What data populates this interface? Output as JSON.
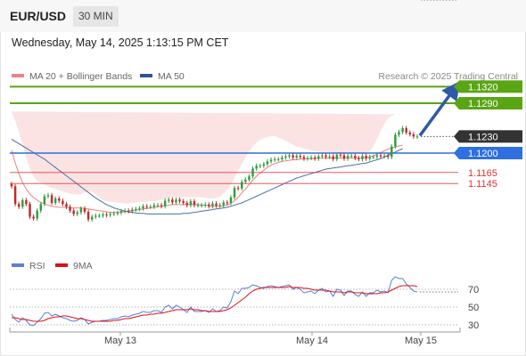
{
  "header": {
    "pair": "EUR/USD",
    "timeframe": "30 MIN"
  },
  "datetime": "Wednesday, May 14, 2025 1:13:15 PM CET",
  "legend": {
    "ma20": {
      "label": "MA 20 + Bollinger Bands",
      "color": "#f08080"
    },
    "ma50": {
      "label": "MA 50",
      "color": "#4a6fa5"
    },
    "rsi": {
      "label": "RSI",
      "color": "#5a7fd6"
    },
    "ma9": {
      "label": "9MA",
      "color": "#e01010"
    }
  },
  "credit": "Research © 2025 Trading Central",
  "levels": [
    {
      "value": "1.1320",
      "kind": "target",
      "color": "#5aa514"
    },
    {
      "value": "1.1290",
      "kind": "target",
      "color": "#5aa514"
    },
    {
      "value": "1.1230",
      "kind": "last",
      "color": "#333333"
    },
    {
      "value": "1.1200",
      "kind": "pivot",
      "color": "#2f6fe0"
    },
    {
      "value": "1.1165",
      "kind": "support",
      "color": "#e03030"
    },
    {
      "value": "1.1145",
      "kind": "support",
      "color": "#e03030"
    }
  ],
  "rsi_levels": [
    "70",
    "50",
    "30"
  ],
  "x_labels": [
    "May 13",
    "May 14",
    "May 15"
  ],
  "chart_data": {
    "type": "candlestick",
    "price_range": [
      1.1065,
      1.1335
    ],
    "up_color": "#2e9e3e",
    "down_color": "#c62828",
    "closes": [
      1.114,
      1.1108,
      1.1103,
      1.1115,
      1.1108,
      1.1085,
      1.1082,
      1.1096,
      1.1108,
      1.1122,
      1.1124,
      1.111,
      1.1118,
      1.1114,
      1.1108,
      1.1103,
      1.1096,
      1.109,
      1.1093,
      1.11,
      1.1094,
      1.108,
      1.1085,
      1.1087,
      1.1087,
      1.1089,
      1.1088,
      1.109,
      1.1091,
      1.1092,
      1.1095,
      1.1096,
      1.1095,
      1.1098,
      1.1099,
      1.11,
      1.1104,
      1.1103,
      1.1103,
      1.1106,
      1.1106,
      1.1104,
      1.1114,
      1.1116,
      1.1111,
      1.1116,
      1.1113,
      1.111,
      1.1106,
      1.1113,
      1.1106,
      1.1106,
      1.1106,
      1.1107,
      1.1104,
      1.1109,
      1.1105,
      1.1106,
      1.1111,
      1.111,
      1.112,
      1.1137,
      1.1136,
      1.1148,
      1.1152,
      1.1158,
      1.1172,
      1.1177,
      1.1177,
      1.118,
      1.1185,
      1.1188,
      1.1189,
      1.1189,
      1.1192,
      1.1194,
      1.1196,
      1.1192,
      1.1195,
      1.1193,
      1.119,
      1.1191,
      1.1192,
      1.119,
      1.1194,
      1.1196,
      1.1193,
      1.1194,
      1.1189,
      1.1197,
      1.1196,
      1.119,
      1.1195,
      1.1195,
      1.1191,
      1.1189,
      1.1195,
      1.119,
      1.1193,
      1.1193,
      1.1196,
      1.1194,
      1.1195,
      1.1193,
      1.1212,
      1.1233,
      1.1238,
      1.1245,
      1.1237,
      1.1234,
      1.123,
      1.123
    ],
    "bollinger_upper": [
      1.1275,
      1.1258,
      1.1238,
      1.1215,
      1.1192,
      1.1172,
      1.1158,
      1.115,
      1.1146,
      1.1143,
      1.114,
      1.1137,
      1.1135,
      1.1133,
      1.1131,
      1.1128,
      1.1127,
      1.1126,
      1.1125,
      1.1126,
      1.1129,
      1.1131,
      1.113,
      1.1126,
      1.112,
      1.1115,
      1.1113,
      1.1112,
      1.1111,
      1.111,
      1.111,
      1.1109,
      1.1109,
      1.111,
      1.1111,
      1.1112,
      1.1112,
      1.1112,
      1.1113,
      1.1113,
      1.1114,
      1.1115,
      1.1117,
      1.1119,
      1.112,
      1.1121,
      1.1121,
      1.1121,
      1.112,
      1.112,
      1.112,
      1.112,
      1.112,
      1.1119,
      1.1118,
      1.1118,
      1.1119,
      1.1121,
      1.1127,
      1.1134,
      1.1143,
      1.1155,
      1.1168,
      1.118,
      1.1192,
      1.1203,
      1.1212,
      1.1219,
      1.1224,
      1.1227,
      1.1229,
      1.123,
      1.123,
      1.1228,
      1.1225,
      1.1222,
      1.1219,
      1.1215,
      1.1212,
      1.121,
      1.1208,
      1.1206,
      1.1205,
      1.1204,
      1.1203,
      1.1202,
      1.1202,
      1.1201,
      1.1201,
      1.1201,
      1.1201,
      1.12,
      1.12,
      1.12,
      1.12,
      1.12,
      1.12,
      1.1201,
      1.1203,
      1.1212,
      1.1225,
      1.124,
      1.1253,
      1.1262,
      1.1267,
      1.127,
      1.1271,
      1.127
    ],
    "bollinger_lower": [
      1.113,
      1.111,
      1.109,
      1.1075,
      1.107,
      1.1067,
      1.1066,
      1.1066,
      1.1067,
      1.1068,
      1.1069,
      1.107,
      1.1071,
      1.1072,
      1.1073,
      1.1074,
      1.1075,
      1.1076,
      1.1077,
      1.1078,
      1.1079,
      1.108,
      1.1081,
      1.1081,
      1.1082,
      1.1082,
      1.1083,
      1.1083,
      1.1084,
      1.1085,
      1.1085,
      1.1086,
      1.1086,
      1.1087,
      1.1088,
      1.1089,
      1.109,
      1.1091,
      1.1092,
      1.1093,
      1.1094,
      1.1094,
      1.1095,
      1.1096,
      1.1096,
      1.1097,
      1.1097,
      1.1097,
      1.1096,
      1.1095,
      1.1095,
      1.1094,
      1.1093,
      1.1092,
      1.1091,
      1.1089,
      1.1088,
      1.1087,
      1.1086,
      1.1085,
      1.1084,
      1.1084,
      1.1085,
      1.1087,
      1.1092,
      1.1099,
      1.1107,
      1.1115,
      1.1124,
      1.1132,
      1.114,
      1.1147,
      1.1153,
      1.1158,
      1.1163,
      1.1167,
      1.117,
      1.1173,
      1.1175,
      1.1177,
      1.1178,
      1.1179,
      1.118,
      1.118,
      1.118,
      1.1181,
      1.1181,
      1.1181,
      1.1181,
      1.1181,
      1.1181,
      1.1181,
      1.1181,
      1.1181,
      1.1181,
      1.1181,
      1.118,
      1.1179,
      1.1175,
      1.1168,
      1.116,
      1.1153,
      1.1147,
      1.1142,
      1.114,
      1.1139,
      1.1139,
      1.114
    ],
    "ma20": [
      1.1205,
      1.1182,
      1.1163,
      1.1147,
      1.1135,
      1.1126,
      1.112,
      1.1115,
      1.1111,
      1.1108,
      1.1106,
      1.1104,
      1.1103,
      1.1102,
      1.1102,
      1.1102,
      1.1101,
      1.1101,
      1.1101,
      1.1101,
      1.11,
      1.1099,
      1.1098,
      1.1097,
      1.1096,
      1.1095,
      1.1094,
      1.1093,
      1.1093,
      1.1093,
      1.1094,
      1.1094,
      1.1095,
      1.1096,
      1.1097,
      1.1098,
      1.1099,
      1.11,
      1.1101,
      1.1102,
      1.1103,
      1.1104,
      1.1105,
      1.1106,
      1.1107,
      1.1107,
      1.1107,
      1.1107,
      1.1107,
      1.1107,
      1.1107,
      1.1107,
      1.1106,
      1.1106,
      1.1105,
      1.1104,
      1.1104,
      1.1104,
      1.1105,
      1.1106,
      1.1109,
      1.1114,
      1.112,
      1.1128,
      1.1135,
      1.1143,
      1.1151,
      1.1158,
      1.1164,
      1.1169,
      1.1174,
      1.1178,
      1.1181,
      1.1183,
      1.1185,
      1.1186,
      1.1187,
      1.1188,
      1.1188,
      1.1189,
      1.1189,
      1.119,
      1.119,
      1.119,
      1.1191,
      1.1191,
      1.1191,
      1.1191,
      1.1191,
      1.1191,
      1.1191,
      1.1191,
      1.1191,
      1.1191,
      1.1191,
      1.1191,
      1.1191,
      1.1192,
      1.1193,
      1.1195,
      1.1198,
      1.1201,
      1.1204,
      1.1207,
      1.1209,
      1.1211,
      1.1213,
      1.1214
    ],
    "ma50": [
      1.1225,
      1.1221,
      1.1217,
      1.1213,
      1.1209,
      1.1205,
      1.1201,
      1.1197,
      1.1193,
      1.1189,
      1.1184,
      1.1179,
      1.1174,
      1.1169,
      1.1164,
      1.1159,
      1.1154,
      1.1149,
      1.1144,
      1.1139,
      1.1134,
      1.1129,
      1.1124,
      1.1119,
      1.1115,
      1.1111,
      1.1107,
      1.1104,
      1.1101,
      1.1099,
      1.1097,
      1.1095,
      1.1094,
      1.1093,
      1.1092,
      1.1091,
      1.1091,
      1.109,
      1.109,
      1.109,
      1.109,
      1.109,
      1.109,
      1.109,
      1.109,
      1.109,
      1.109,
      1.1091,
      1.1091,
      1.1092,
      1.1093,
      1.1094,
      1.1095,
      1.1096,
      1.1097,
      1.1098,
      1.1099,
      1.11,
      1.1101,
      1.1102,
      1.1104,
      1.1106,
      1.1108,
      1.111,
      1.1113,
      1.1116,
      1.1119,
      1.1122,
      1.1125,
      1.1128,
      1.1131,
      1.1134,
      1.1137,
      1.114,
      1.1143,
      1.1146,
      1.1149,
      1.1152,
      1.1155,
      1.1157,
      1.1159,
      1.1161,
      1.1163,
      1.1165,
      1.1167,
      1.1169,
      1.1171,
      1.1172,
      1.1173,
      1.1174,
      1.1175,
      1.1176,
      1.1177,
      1.1178,
      1.1179,
      1.118,
      1.1181,
      1.1182,
      1.1184,
      1.1186,
      1.1188,
      1.119,
      1.1193,
      1.1196,
      1.1199,
      1.1202,
      1.1205,
      1.1208
    ],
    "rsi": [
      42,
      36,
      33,
      38,
      35,
      30,
      29,
      33,
      37,
      43,
      44,
      40,
      42,
      40,
      38,
      37,
      35,
      34,
      35,
      38,
      36,
      31,
      33,
      34,
      34,
      35,
      35,
      36,
      37,
      37,
      39,
      40,
      39,
      41,
      42,
      43,
      45,
      44,
      44,
      46,
      46,
      44,
      50,
      52,
      48,
      52,
      50,
      47,
      44,
      50,
      45,
      45,
      45,
      46,
      44,
      48,
      45,
      46,
      50,
      49,
      56,
      68,
      65,
      71,
      71,
      72,
      75,
      74,
      72,
      71,
      73,
      74,
      73,
      72,
      73,
      74,
      75,
      70,
      72,
      70,
      66,
      67,
      68,
      65,
      69,
      71,
      67,
      68,
      62,
      70,
      69,
      63,
      68,
      68,
      64,
      62,
      67,
      62,
      66,
      66,
      69,
      67,
      68,
      66,
      80,
      84,
      82,
      82,
      76,
      72,
      68,
      67
    ],
    "rsi_ma9": [
      38,
      38,
      37,
      36,
      36,
      35,
      34,
      34,
      34,
      35,
      37,
      38,
      39,
      39,
      40,
      40,
      39,
      38,
      37,
      37,
      36,
      35,
      34,
      34,
      34,
      34,
      34,
      34,
      35,
      35,
      36,
      37,
      37,
      38,
      39,
      40,
      41,
      41,
      42,
      42,
      43,
      43,
      44,
      45,
      46,
      47,
      47,
      47,
      47,
      48,
      47,
      47,
      46,
      46,
      45,
      45,
      45,
      45,
      46,
      47,
      49,
      52,
      55,
      58,
      61,
      65,
      68,
      70,
      71,
      72,
      72,
      72,
      72,
      72,
      72,
      72,
      73,
      72,
      72,
      72,
      71,
      71,
      70,
      69,
      69,
      69,
      69,
      68,
      67,
      67,
      67,
      66,
      67,
      67,
      66,
      66,
      66,
      65,
      65,
      65,
      65,
      66,
      66,
      67,
      69,
      71,
      73,
      74,
      74,
      74,
      74,
      73
    ],
    "rsi_range": [
      20,
      85
    ]
  }
}
